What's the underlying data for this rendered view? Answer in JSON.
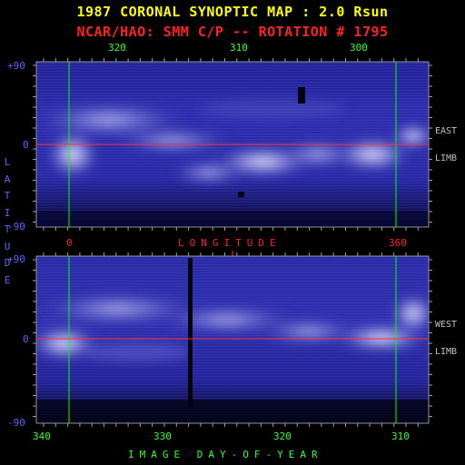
{
  "header": {
    "title": "1987 CORONAL SYNOPTIC MAP : 2.0 Rsun",
    "subtitle": "NCAR/HAO: SMM C/P -- ROTATION # 1795"
  },
  "top_panel": {
    "x_ticks": [
      "320",
      "310",
      "300"
    ],
    "y_ticks": [
      "+90",
      "0",
      "-90"
    ],
    "side_labels": [
      "EAST",
      "LIMB"
    ],
    "longitude_ticks": [
      "0",
      "360"
    ],
    "longitude_label": "LONGITUDE"
  },
  "bottom_panel": {
    "y_ticks": [
      "+90",
      "0",
      "-90"
    ],
    "side_labels": [
      "WEST",
      "LIMB"
    ],
    "x_ticks": [
      "340",
      "330",
      "320",
      "310"
    ],
    "x_label": "IMAGE DAY-OF-YEAR"
  },
  "y_axis_label": [
    "L",
    "A",
    "T",
    "I",
    "T",
    "U",
    "D",
    "E"
  ],
  "colors": {
    "title": "#ffff00",
    "subtitle": "#ff2020",
    "tick_green": "#30ff30",
    "tick_blue": "#6060ff",
    "side_label": "#c0c0c0",
    "longitude_red": "#ff2020",
    "grid_line": "#00ff00",
    "equator": "#ff3030",
    "background": "#000000",
    "map_dark": "#1a1a8c",
    "map_bright": "#e8e8ff"
  }
}
